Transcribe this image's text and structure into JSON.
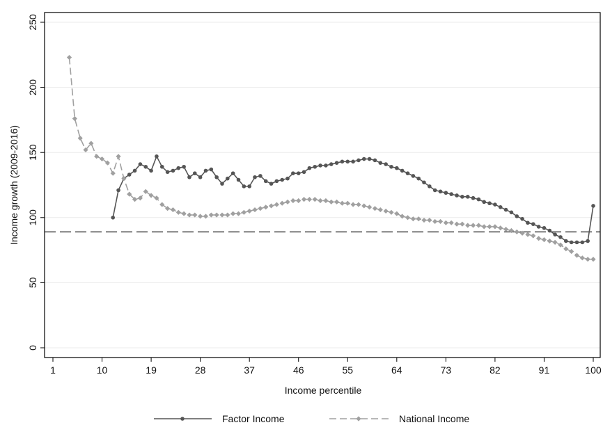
{
  "chart_data": {
    "type": "line",
    "title": "",
    "xlabel": "Income percentile",
    "ylabel": "Income growth (2009-2016)",
    "xlim": [
      1,
      100
    ],
    "ylim": [
      0,
      250
    ],
    "x_ticks": [
      1,
      10,
      19,
      28,
      37,
      46,
      55,
      64,
      73,
      82,
      91,
      100
    ],
    "y_ticks": [
      0,
      50,
      100,
      150,
      200,
      250
    ],
    "grid": "horizontal",
    "legend_position": "bottom",
    "reference_line": {
      "y": 89,
      "style": "dashed",
      "color": "#444444"
    },
    "series": [
      {
        "name": "Factor Income",
        "color": "#555555",
        "line_style": "solid",
        "marker": "circle",
        "x": [
          12,
          13,
          14,
          15,
          16,
          17,
          18,
          19,
          20,
          21,
          22,
          23,
          24,
          25,
          26,
          27,
          28,
          29,
          30,
          31,
          32,
          33,
          34,
          35,
          36,
          37,
          38,
          39,
          40,
          41,
          42,
          43,
          44,
          45,
          46,
          47,
          48,
          49,
          50,
          51,
          52,
          53,
          54,
          55,
          56,
          57,
          58,
          59,
          60,
          61,
          62,
          63,
          64,
          65,
          66,
          67,
          68,
          69,
          70,
          71,
          72,
          73,
          74,
          75,
          76,
          77,
          78,
          79,
          80,
          81,
          82,
          83,
          84,
          85,
          86,
          87,
          88,
          89,
          90,
          91,
          92,
          93,
          94,
          95,
          96,
          97,
          98,
          99,
          100
        ],
        "y": [
          100,
          121,
          130,
          133,
          136,
          141,
          139,
          136,
          147,
          139,
          135,
          136,
          138,
          139,
          131,
          134,
          131,
          136,
          137,
          131,
          126,
          130,
          134,
          129,
          124,
          124,
          131,
          132,
          128,
          126,
          128,
          129,
          130,
          134,
          134,
          135,
          138,
          139,
          140,
          140,
          141,
          142,
          143,
          143,
          143,
          144,
          145,
          145,
          144,
          142,
          141,
          139,
          138,
          136,
          134,
          132,
          130,
          127,
          124,
          121,
          120,
          119,
          118,
          117,
          116,
          116,
          115,
          114,
          112,
          111,
          110,
          108,
          106,
          104,
          101,
          99,
          96,
          95,
          93,
          92,
          90,
          87,
          85,
          82,
          81,
          81,
          81,
          82,
          109
        ]
      },
      {
        "name": "National Income",
        "color": "#a0a0a0",
        "line_style": "dashed",
        "marker": "diamond",
        "x": [
          4,
          5,
          6,
          7,
          8,
          9,
          10,
          11,
          12,
          13,
          14,
          15,
          16,
          17,
          18,
          19,
          20,
          21,
          22,
          23,
          24,
          25,
          26,
          27,
          28,
          29,
          30,
          31,
          32,
          33,
          34,
          35,
          36,
          37,
          38,
          39,
          40,
          41,
          42,
          43,
          44,
          45,
          46,
          47,
          48,
          49,
          50,
          51,
          52,
          53,
          54,
          55,
          56,
          57,
          58,
          59,
          60,
          61,
          62,
          63,
          64,
          65,
          66,
          67,
          68,
          69,
          70,
          71,
          72,
          73,
          74,
          75,
          76,
          77,
          78,
          79,
          80,
          81,
          82,
          83,
          84,
          85,
          86,
          87,
          88,
          89,
          90,
          91,
          92,
          93,
          94,
          95,
          96,
          97,
          98,
          99,
          100
        ],
        "y": [
          223,
          176,
          161,
          152,
          157,
          147,
          145,
          142,
          134,
          147,
          130,
          118,
          114,
          115,
          120,
          117,
          115,
          110,
          107,
          106,
          104,
          103,
          102,
          102,
          101,
          101,
          102,
          102,
          102,
          102,
          103,
          103,
          104,
          105,
          106,
          107,
          108,
          109,
          110,
          111,
          112,
          113,
          113,
          114,
          114,
          114,
          113,
          113,
          112,
          112,
          111,
          111,
          110,
          110,
          109,
          108,
          107,
          106,
          105,
          104,
          103,
          101,
          100,
          99,
          99,
          98,
          98,
          97,
          97,
          96,
          96,
          95,
          95,
          94,
          94,
          94,
          93,
          93,
          93,
          92,
          91,
          90,
          89,
          88,
          87,
          86,
          84,
          83,
          82,
          81,
          79,
          76,
          74,
          71,
          69,
          68,
          68
        ]
      }
    ]
  }
}
